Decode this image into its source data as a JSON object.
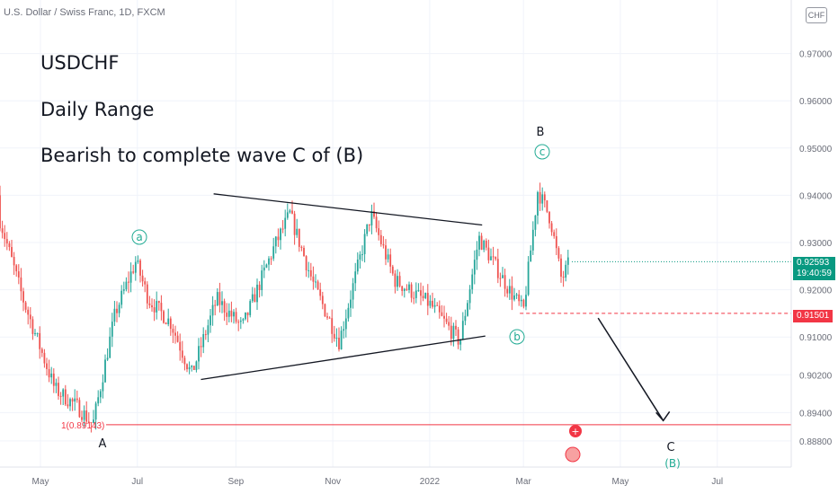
{
  "header": {
    "symbol_line": "U.S. Dollar / Swiss Franc, 1D, FXCM",
    "currency_badge": "CHF"
  },
  "notes": {
    "line1": "USDCHF",
    "line2": "Daily Range",
    "line3": "Bearish to complete wave C of (B)"
  },
  "price_tags": {
    "last_price": "0.92593",
    "countdown": "19:40:59",
    "target_level": "0.91501",
    "fib_label": "1(0.89143)"
  },
  "wave_labels": {
    "a": "a",
    "b_lower": "b",
    "c_circle": "c",
    "B": "B",
    "A": "A",
    "C": "C",
    "B_paren": "(B)"
  },
  "colors": {
    "up": "#26a69a",
    "down": "#ef5350",
    "wave_label": "#22ab94",
    "text": "#131722",
    "axis_text": "#6a6d78",
    "last_price_bg": "#089981",
    "target_bg": "#f23645",
    "fib_line": "#f23645"
  },
  "chart_data": {
    "type": "candlestick",
    "symbol": "USDCHF",
    "timeframe": "1D",
    "ylim": [
      0.8868,
      0.9832
    ],
    "ytick_labels": [
      "0.97000",
      "0.96000",
      "0.95000",
      "0.94000",
      "0.93000",
      "0.92000",
      "0.91000",
      "0.90200",
      "0.89400",
      "0.88800"
    ],
    "ytick_values": [
      0.97,
      0.96,
      0.95,
      0.94,
      0.93,
      0.92,
      0.91,
      0.902,
      0.894,
      0.888
    ],
    "xtick_labels": [
      "May",
      "Jul",
      "Sep",
      "Nov",
      "2022",
      "Mar",
      "May",
      "Jul"
    ],
    "xtick_dates": [
      "2021-05-01",
      "2021-07-01",
      "2021-09-01",
      "2021-11-01",
      "2022-01-01",
      "2022-03-01",
      "2022-05-01",
      "2022-07-01"
    ],
    "price_path": [
      {
        "date": "2021-04-01",
        "price": 0.94
      },
      {
        "date": "2021-04-20",
        "price": 0.918
      },
      {
        "date": "2021-05-10",
        "price": 0.899
      },
      {
        "date": "2021-05-25",
        "price": 0.895
      },
      {
        "date": "2021-06-03",
        "price": 0.8914
      },
      {
        "date": "2021-06-17",
        "price": 0.915
      },
      {
        "date": "2021-06-30",
        "price": 0.926
      },
      {
        "date": "2021-07-08",
        "price": 0.918
      },
      {
        "date": "2021-07-22",
        "price": 0.913
      },
      {
        "date": "2021-08-04",
        "price": 0.902
      },
      {
        "date": "2021-08-20",
        "price": 0.918
      },
      {
        "date": "2021-09-05",
        "price": 0.912
      },
      {
        "date": "2021-09-25",
        "price": 0.929
      },
      {
        "date": "2021-10-05",
        "price": 0.936
      },
      {
        "date": "2021-10-20",
        "price": 0.921
      },
      {
        "date": "2021-11-05",
        "price": 0.909
      },
      {
        "date": "2021-11-25",
        "price": 0.936
      },
      {
        "date": "2021-12-10",
        "price": 0.922
      },
      {
        "date": "2022-01-01",
        "price": 0.917
      },
      {
        "date": "2022-01-20",
        "price": 0.909
      },
      {
        "date": "2022-02-01",
        "price": 0.931
      },
      {
        "date": "2022-02-20",
        "price": 0.92
      },
      {
        "date": "2022-03-01",
        "price": 0.9155
      },
      {
        "date": "2022-03-10",
        "price": 0.941
      },
      {
        "date": "2022-03-18",
        "price": 0.935
      },
      {
        "date": "2022-03-25",
        "price": 0.922
      },
      {
        "date": "2022-03-30",
        "price": 0.9259
      }
    ],
    "trendlines": [
      {
        "name": "triangle-upper",
        "from": {
          "date": "2021-08-18",
          "price": 0.9403
        },
        "to": {
          "date": "2022-02-03",
          "price": 0.9337
        }
      },
      {
        "name": "triangle-lower",
        "from": {
          "date": "2021-08-10",
          "price": 0.901
        },
        "to": {
          "date": "2022-02-05",
          "price": 0.9102
        }
      }
    ],
    "fib_level": {
      "price": 0.89143
    },
    "target_line": {
      "from_date": "2022-03-01",
      "price": 0.91501
    },
    "projection_arrow": {
      "from": {
        "date": "2022-04-17",
        "price": 0.914
      },
      "to": {
        "date": "2022-05-28",
        "price": 0.8923
      }
    },
    "last_price": 0.92593
  }
}
